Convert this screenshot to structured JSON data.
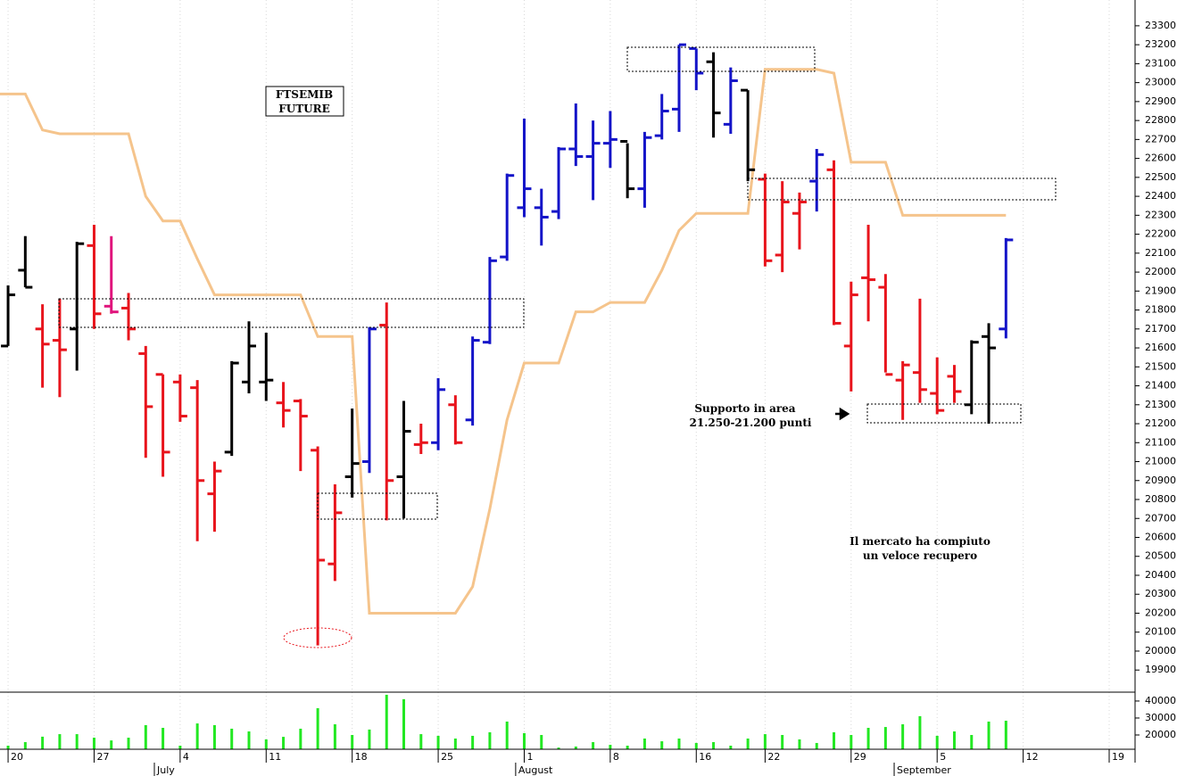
{
  "chart_data": [
    {
      "type": "ohlc",
      "open": [
        21610,
        22010,
        21700,
        21640,
        21700,
        22140,
        21820,
        21810,
        21570,
        21460,
        21420,
        21390,
        20830,
        21050,
        21420,
        21420,
        21310,
        21320,
        21060,
        20460,
        20920,
        21000,
        21720,
        20920,
        21090,
        21100,
        21300,
        21220,
        21630,
        22080,
        22340,
        22340,
        22320,
        22650,
        22610,
        22680,
        22690,
        22440,
        22720,
        22860,
        23180,
        23110,
        22780,
        22960,
        22490,
        22090,
        22310,
        22480,
        22540,
        21610,
        21970,
        21920,
        21430,
        21470,
        21360,
        21450,
        21300,
        21660,
        21700
      ],
      "high": [
        21930,
        22190,
        21830,
        21860,
        22160,
        22250,
        22190,
        21890,
        21610,
        21460,
        21460,
        21430,
        21000,
        21530,
        21740,
        21680,
        21420,
        21330,
        21080,
        20880,
        21280,
        21710,
        21840,
        21320,
        21200,
        21440,
        21350,
        21660,
        22080,
        22520,
        22810,
        22440,
        22660,
        22890,
        22800,
        22850,
        22680,
        22740,
        22940,
        23200,
        23180,
        23160,
        23080,
        22960,
        22520,
        22480,
        22420,
        22650,
        22590,
        21950,
        22250,
        21990,
        21530,
        21860,
        21550,
        21510,
        21640,
        21730,
        22180
      ],
      "low": [
        21610,
        21920,
        21390,
        21340,
        21480,
        21700,
        21780,
        21640,
        21020,
        20920,
        21210,
        20580,
        20630,
        21030,
        21360,
        21320,
        21180,
        20950,
        20030,
        20370,
        20810,
        20940,
        20690,
        20700,
        21040,
        21060,
        21090,
        21190,
        21620,
        22060,
        22290,
        22140,
        22280,
        22560,
        22380,
        22550,
        22390,
        22340,
        22700,
        22740,
        22960,
        22710,
        22730,
        22480,
        22030,
        22000,
        22120,
        22320,
        21720,
        21370,
        21740,
        21470,
        21220,
        21310,
        21250,
        21310,
        21250,
        21200,
        21650
      ],
      "close": [
        21880,
        21920,
        21620,
        21590,
        22150,
        21780,
        21790,
        21700,
        21290,
        21050,
        21240,
        20900,
        20950,
        21520,
        21610,
        21430,
        21270,
        21240,
        20480,
        20730,
        20990,
        21700,
        20900,
        21160,
        21100,
        21380,
        21100,
        21640,
        22060,
        22510,
        22440,
        22290,
        22650,
        22610,
        22680,
        22700,
        22440,
        22710,
        22850,
        23200,
        23050,
        22840,
        23010,
        22540,
        22060,
        22370,
        22370,
        22620,
        21730,
        21880,
        21960,
        21460,
        21510,
        21380,
        21270,
        21370,
        21630,
        21600,
        22170
      ],
      "colors": [
        "#000000",
        "#000000",
        "#e8141c",
        "#e8141c",
        "#000000",
        "#e8141c",
        "#e0147c",
        "#e8141c",
        "#e8141c",
        "#e8141c",
        "#e8141c",
        "#e8141c",
        "#e8141c",
        "#000000",
        "#000000",
        "#000000",
        "#e8141c",
        "#e8141c",
        "#e8141c",
        "#e8141c",
        "#000000",
        "#1414c8",
        "#e8141c",
        "#000000",
        "#e8141c",
        "#1414c8",
        "#e8141c",
        "#1414c8",
        "#1414c8",
        "#1414c8",
        "#1414c8",
        "#1414c8",
        "#1414c8",
        "#1414c8",
        "#1414c8",
        "#1414c8",
        "#000000",
        "#1414c8",
        "#1414c8",
        "#1414c8",
        "#1414c8",
        "#000000",
        "#1414c8",
        "#000000",
        "#e8141c",
        "#e8141c",
        "#e8141c",
        "#1414c8",
        "#e8141c",
        "#e8141c",
        "#e8141c",
        "#e8141c",
        "#e8141c",
        "#e8141c",
        "#e8141c",
        "#e8141c",
        "#000000",
        "#000000",
        "#1414c8"
      ],
      "line": {
        "color": "#f5c48c",
        "x": [
          -0.5,
          1,
          2,
          3,
          7,
          8,
          9,
          10,
          11,
          12,
          17,
          18,
          20,
          21,
          26,
          27,
          28,
          29,
          30,
          32,
          33,
          34,
          35,
          37,
          38,
          39,
          40,
          43,
          44,
          47,
          48,
          49,
          51,
          52,
          58
        ],
        "values": [
          22940,
          22940,
          22750,
          22730,
          22730,
          22400,
          22270,
          22270,
          22070,
          21880,
          21880,
          21660,
          21660,
          20200,
          20200,
          20340,
          20750,
          21220,
          21520,
          21520,
          21790,
          21790,
          21840,
          21840,
          22010,
          22220,
          22310,
          22310,
          23070,
          23070,
          23050,
          22580,
          22580,
          22300,
          22300
        ]
      },
      "xlim": [
        -0.47,
        65.4
      ],
      "ylim": [
        19788,
        23436
      ],
      "yticks": [
        19900,
        20000,
        20100,
        20200,
        20300,
        20400,
        20500,
        20600,
        20700,
        20800,
        20900,
        21000,
        21100,
        21200,
        21300,
        21400,
        21500,
        21600,
        21700,
        21800,
        21900,
        22000,
        22100,
        22200,
        22300,
        22400,
        22500,
        22600,
        22700,
        22800,
        22900,
        23000,
        23100,
        23200,
        23300
      ],
      "xticks": [
        {
          "value": 0,
          "label": "20"
        },
        {
          "value": 5,
          "label": "27"
        },
        {
          "value": 10,
          "label": "4"
        },
        {
          "value": 15,
          "label": "11"
        },
        {
          "value": 20,
          "label": "18"
        },
        {
          "value": 25,
          "label": "25"
        },
        {
          "value": 30,
          "label": "1"
        },
        {
          "value": 35,
          "label": "8"
        },
        {
          "value": 40,
          "label": "16"
        },
        {
          "value": 44,
          "label": "22"
        },
        {
          "value": 49,
          "label": "29"
        },
        {
          "value": 54,
          "label": "5"
        },
        {
          "value": 59,
          "label": "12"
        },
        {
          "value": 64,
          "label": "19"
        }
      ],
      "months": [
        {
          "value": 9,
          "label": "July"
        },
        {
          "value": 30,
          "label": "August"
        },
        {
          "value": 52,
          "label": "September"
        }
      ],
      "grid": true,
      "annotations": [
        {
          "lines": [
            "FTSEMIB",
            "FUTURE"
          ]
        },
        {
          "lines": [
            "Supporto in area",
            "21.250-21.200 punti"
          ]
        },
        {
          "lines": [
            "Il mercato ha compiuto",
            "un veloce recupero"
          ]
        }
      ]
    },
    {
      "type": "bar",
      "color": "#22e822",
      "values": [
        13700,
        15800,
        19000,
        20500,
        20500,
        18400,
        16800,
        18400,
        25800,
        24200,
        13700,
        26800,
        25800,
        23700,
        22100,
        17400,
        18900,
        23700,
        35800,
        26300,
        20000,
        23200,
        43700,
        41100,
        20500,
        19500,
        17900,
        19500,
        21600,
        27900,
        21100,
        20000,
        12600,
        13200,
        15800,
        14200,
        13700,
        17900,
        16300,
        17900,
        15300,
        15800,
        13700,
        17900,
        20500,
        20000,
        17400,
        15300,
        21600,
        20000,
        24200,
        24700,
        26300,
        31100,
        19500,
        22100,
        20000,
        27900,
        28400
      ],
      "ylim": [
        11600,
        44700
      ],
      "yticks": [
        20000,
        30000,
        40000
      ]
    }
  ]
}
